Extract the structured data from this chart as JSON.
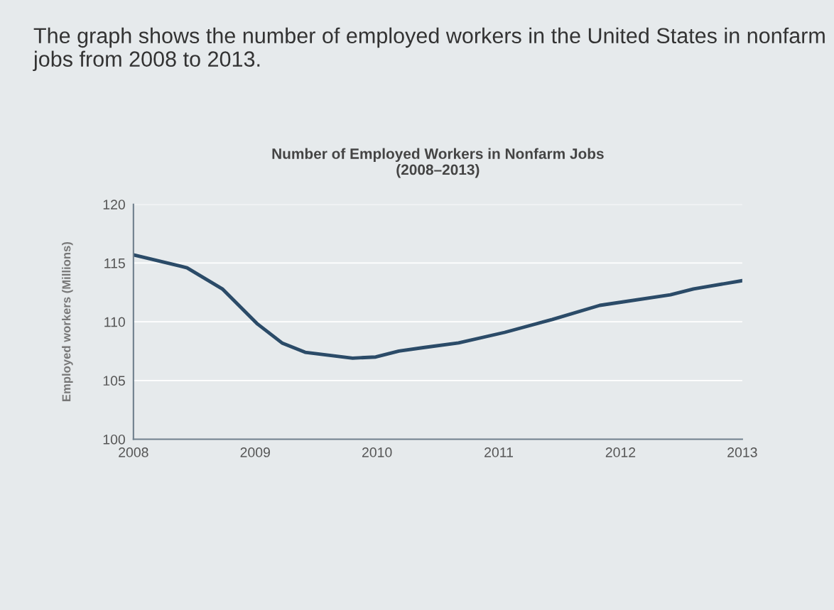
{
  "chart_data": {
    "type": "line",
    "subtitle": "The graph shows the number of employed workers in the United States in nonfarm jobs from 2008 to 2013.",
    "title": "Number of Employed Workers in Nonfarm Jobs\n(2008–2013)",
    "ylabel": "Employed workers (Millions)",
    "series": [
      {
        "color": "#2b4b68",
        "x": [
          2008.0,
          2008.44,
          2008.73,
          2009.02,
          2009.22,
          2009.41,
          2009.8,
          2009.99,
          2010.18,
          2010.38,
          2010.67,
          2011.05,
          2011.44,
          2011.83,
          2012.41,
          2012.6,
          2013.0
        ],
        "values": [
          115.7,
          114.6,
          112.8,
          109.8,
          108.2,
          107.4,
          106.9,
          107.0,
          107.5,
          107.8,
          108.2,
          109.1,
          110.2,
          111.4,
          112.3,
          112.8,
          113.5
        ]
      }
    ],
    "xlim": [
      2008,
      2013
    ],
    "xticks": [
      2008,
      2009,
      2010,
      2011,
      2012,
      2013
    ],
    "ylim": [
      100,
      120
    ],
    "yticks": [
      100,
      105,
      110,
      115,
      120
    ],
    "grid": "y",
    "legend": false,
    "marker": "none",
    "line_style": "solid"
  }
}
